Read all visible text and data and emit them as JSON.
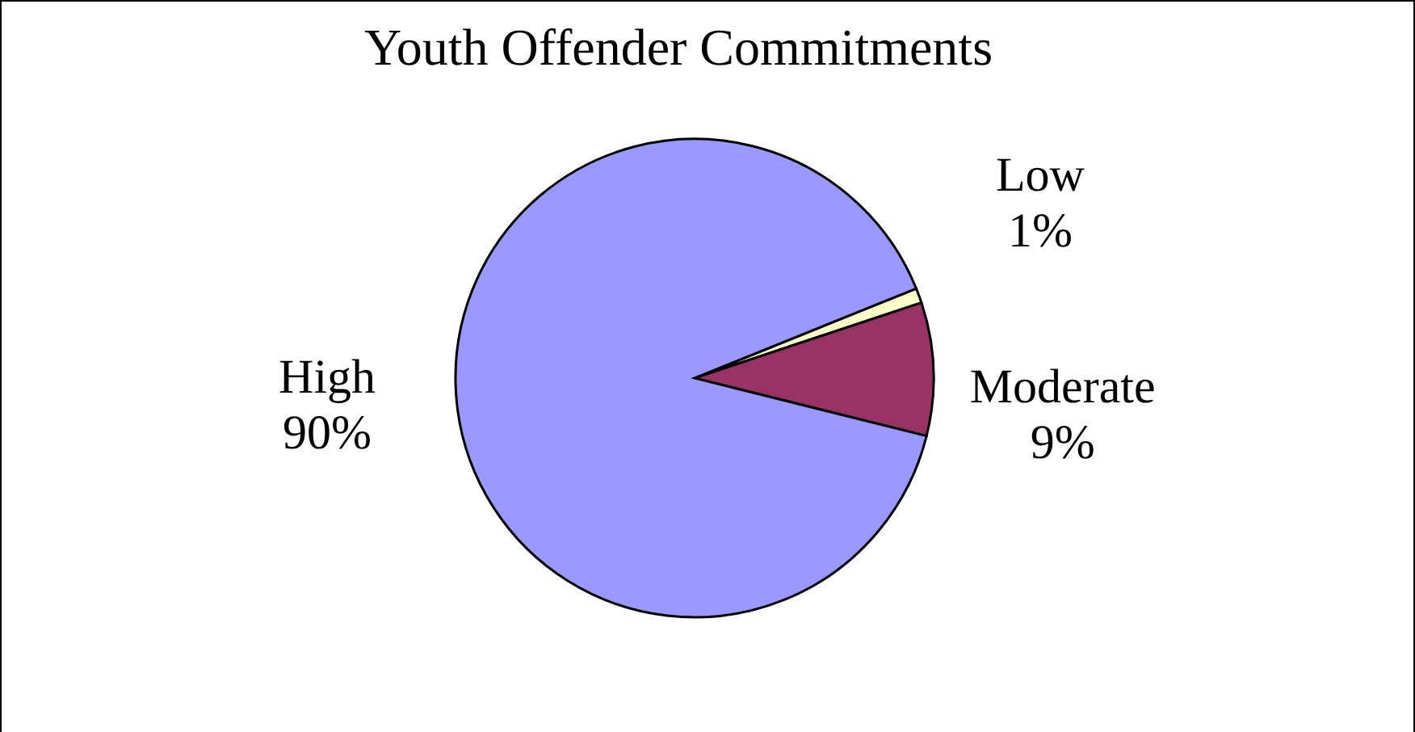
{
  "chart_data": {
    "type": "pie",
    "title": "Youth Offender Commitments",
    "categories": [
      "Low",
      "Moderate",
      "High"
    ],
    "values": [
      1,
      9,
      90
    ],
    "colors": [
      "#ffffcc",
      "#993366",
      "#9999ff"
    ],
    "value_labels": [
      "1%",
      "9%",
      "90%"
    ],
    "legend": false
  }
}
